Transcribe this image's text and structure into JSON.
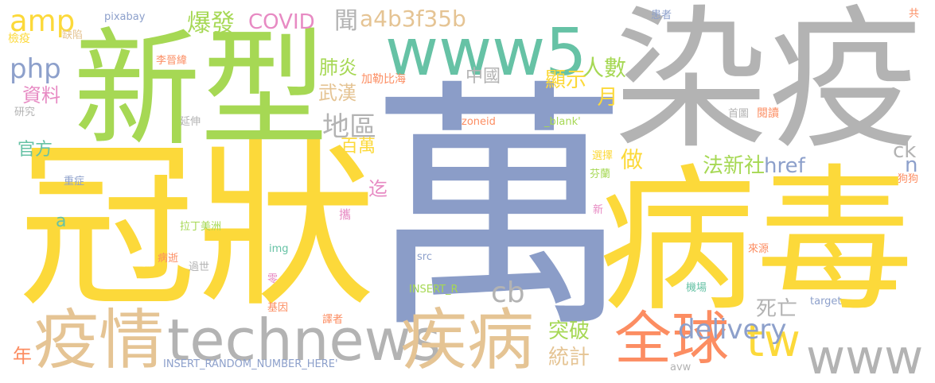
{
  "words": [
    {
      "text": "萬",
      "color": "#8b9dc8"
    },
    {
      "text": "冠狀",
      "color": "#fcd93a"
    },
    {
      "text": "染疫",
      "color": "#b3b3b3"
    },
    {
      "text": "病毒",
      "color": "#fcd93a"
    },
    {
      "text": "新型",
      "color": "#a6d854"
    },
    {
      "text": "technews",
      "color": "#b3b3b3"
    },
    {
      "text": "www5",
      "color": "#66c2a5"
    },
    {
      "text": "疫情",
      "color": "#e5c494"
    },
    {
      "text": "疾病",
      "color": "#e5c494"
    },
    {
      "text": "全球",
      "color": "#fc8d62"
    },
    {
      "text": "www",
      "color": "#b3b3b3"
    },
    {
      "text": "tw",
      "color": "#fcd93a"
    },
    {
      "text": "amp",
      "color": "#fcd93a"
    },
    {
      "text": "php",
      "color": "#8da0cb"
    },
    {
      "text": "COVID",
      "color": "#e78ac3"
    },
    {
      "text": "a4b3f35b",
      "color": "#e5c494"
    },
    {
      "text": "爆發",
      "color": "#a6d854"
    },
    {
      "text": "聞",
      "color": "#b3b3b3"
    },
    {
      "text": "人數",
      "color": "#a6d854"
    },
    {
      "text": "肺炎",
      "color": "#a6d854"
    },
    {
      "text": "武漢",
      "color": "#e5c494"
    },
    {
      "text": "中國",
      "color": "#b3b3b3"
    },
    {
      "text": "顯示",
      "color": "#fcd93a"
    },
    {
      "text": "月",
      "color": "#fcd93a"
    },
    {
      "text": "地區",
      "color": "#b3b3b3"
    },
    {
      "text": "百萬",
      "color": "#fcd93a"
    },
    {
      "text": "資料",
      "color": "#e78ac3"
    },
    {
      "text": "官方",
      "color": "#66c2a5"
    },
    {
      "text": "delivery",
      "color": "#8da0cb"
    },
    {
      "text": "cb",
      "color": "#b3b3b3"
    },
    {
      "text": "ck",
      "color": "#b3b3b3"
    },
    {
      "text": "n",
      "color": "#8da0cb"
    },
    {
      "text": "href",
      "color": "#8da0cb"
    },
    {
      "text": "法新社",
      "color": "#a6d854"
    },
    {
      "text": "做",
      "color": "#fcd93a"
    },
    {
      "text": "突破",
      "color": "#a6d854"
    },
    {
      "text": "統計",
      "color": "#e5c494"
    },
    {
      "text": "死亡",
      "color": "#b3b3b3"
    },
    {
      "text": "年",
      "color": "#fc8d62"
    },
    {
      "text": "迄",
      "color": "#e78ac3"
    },
    {
      "text": "a",
      "color": "#66c2a5"
    },
    {
      "text": "pixabay",
      "color": "#8da0cb"
    },
    {
      "text": "檢疫",
      "color": "#fcd93a"
    },
    {
      "text": "缺陷",
      "color": "#e5c494"
    },
    {
      "text": "李晉緯",
      "color": "#fc8d62"
    },
    {
      "text": "研究",
      "color": "#b3b3b3"
    },
    {
      "text": "延伸",
      "color": "#b3b3b3"
    },
    {
      "text": "加勒比海",
      "color": "#fc8d62"
    },
    {
      "text": "zoneid",
      "color": "#fc8d62"
    },
    {
      "text": "_blank'",
      "color": "#a6d854"
    },
    {
      "text": "重症",
      "color": "#8da0cb"
    },
    {
      "text": "拉丁美洲",
      "color": "#a6d854"
    },
    {
      "text": "img",
      "color": "#66c2a5"
    },
    {
      "text": "src",
      "color": "#8da0cb"
    },
    {
      "text": "病逝",
      "color": "#fc8d62"
    },
    {
      "text": "過世",
      "color": "#b3b3b3"
    },
    {
      "text": "零",
      "color": "#e78ac3"
    },
    {
      "text": "INSERT_R",
      "color": "#a6d854"
    },
    {
      "text": "基因",
      "color": "#fc8d62"
    },
    {
      "text": "譯者",
      "color": "#fc8d62"
    },
    {
      "text": "INSERT_RANDOM_NUMBER_HERE'",
      "color": "#8da0cb"
    },
    {
      "text": "患者",
      "color": "#8da0cb"
    },
    {
      "text": "共",
      "color": "#fc8d62"
    },
    {
      "text": "首圖",
      "color": "#b3b3b3"
    },
    {
      "text": "閱讀",
      "color": "#fc8d62"
    },
    {
      "text": "選擇",
      "color": "#fcd93a"
    },
    {
      "text": "芬蘭",
      "color": "#a6d854"
    },
    {
      "text": "狗狗",
      "color": "#fc8d62"
    },
    {
      "text": "新",
      "color": "#e78ac3"
    },
    {
      "text": "來源",
      "color": "#fc8d62"
    },
    {
      "text": "機場",
      "color": "#66c2a5"
    },
    {
      "text": "target",
      "color": "#8da0cb"
    },
    {
      "text": "avw",
      "color": "#b3b3b3"
    },
    {
      "text": "攜",
      "color": "#e78ac3"
    }
  ]
}
